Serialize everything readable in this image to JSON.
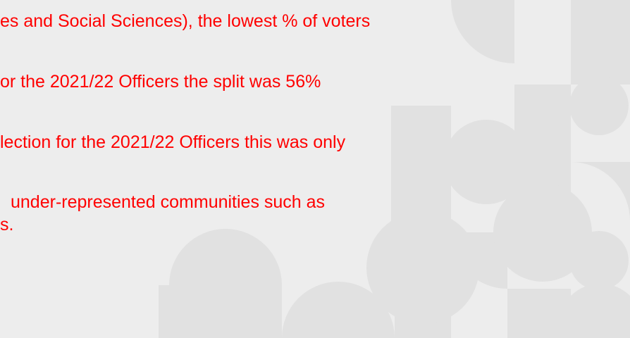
{
  "lines": [
    "es and Social Sciences), the lowest % of voters",
    "or the 2021/22 Officers the split was 56%",
    "lection for the 2021/22 Officers this was only",
    "under-represented communities such as",
    "s."
  ]
}
